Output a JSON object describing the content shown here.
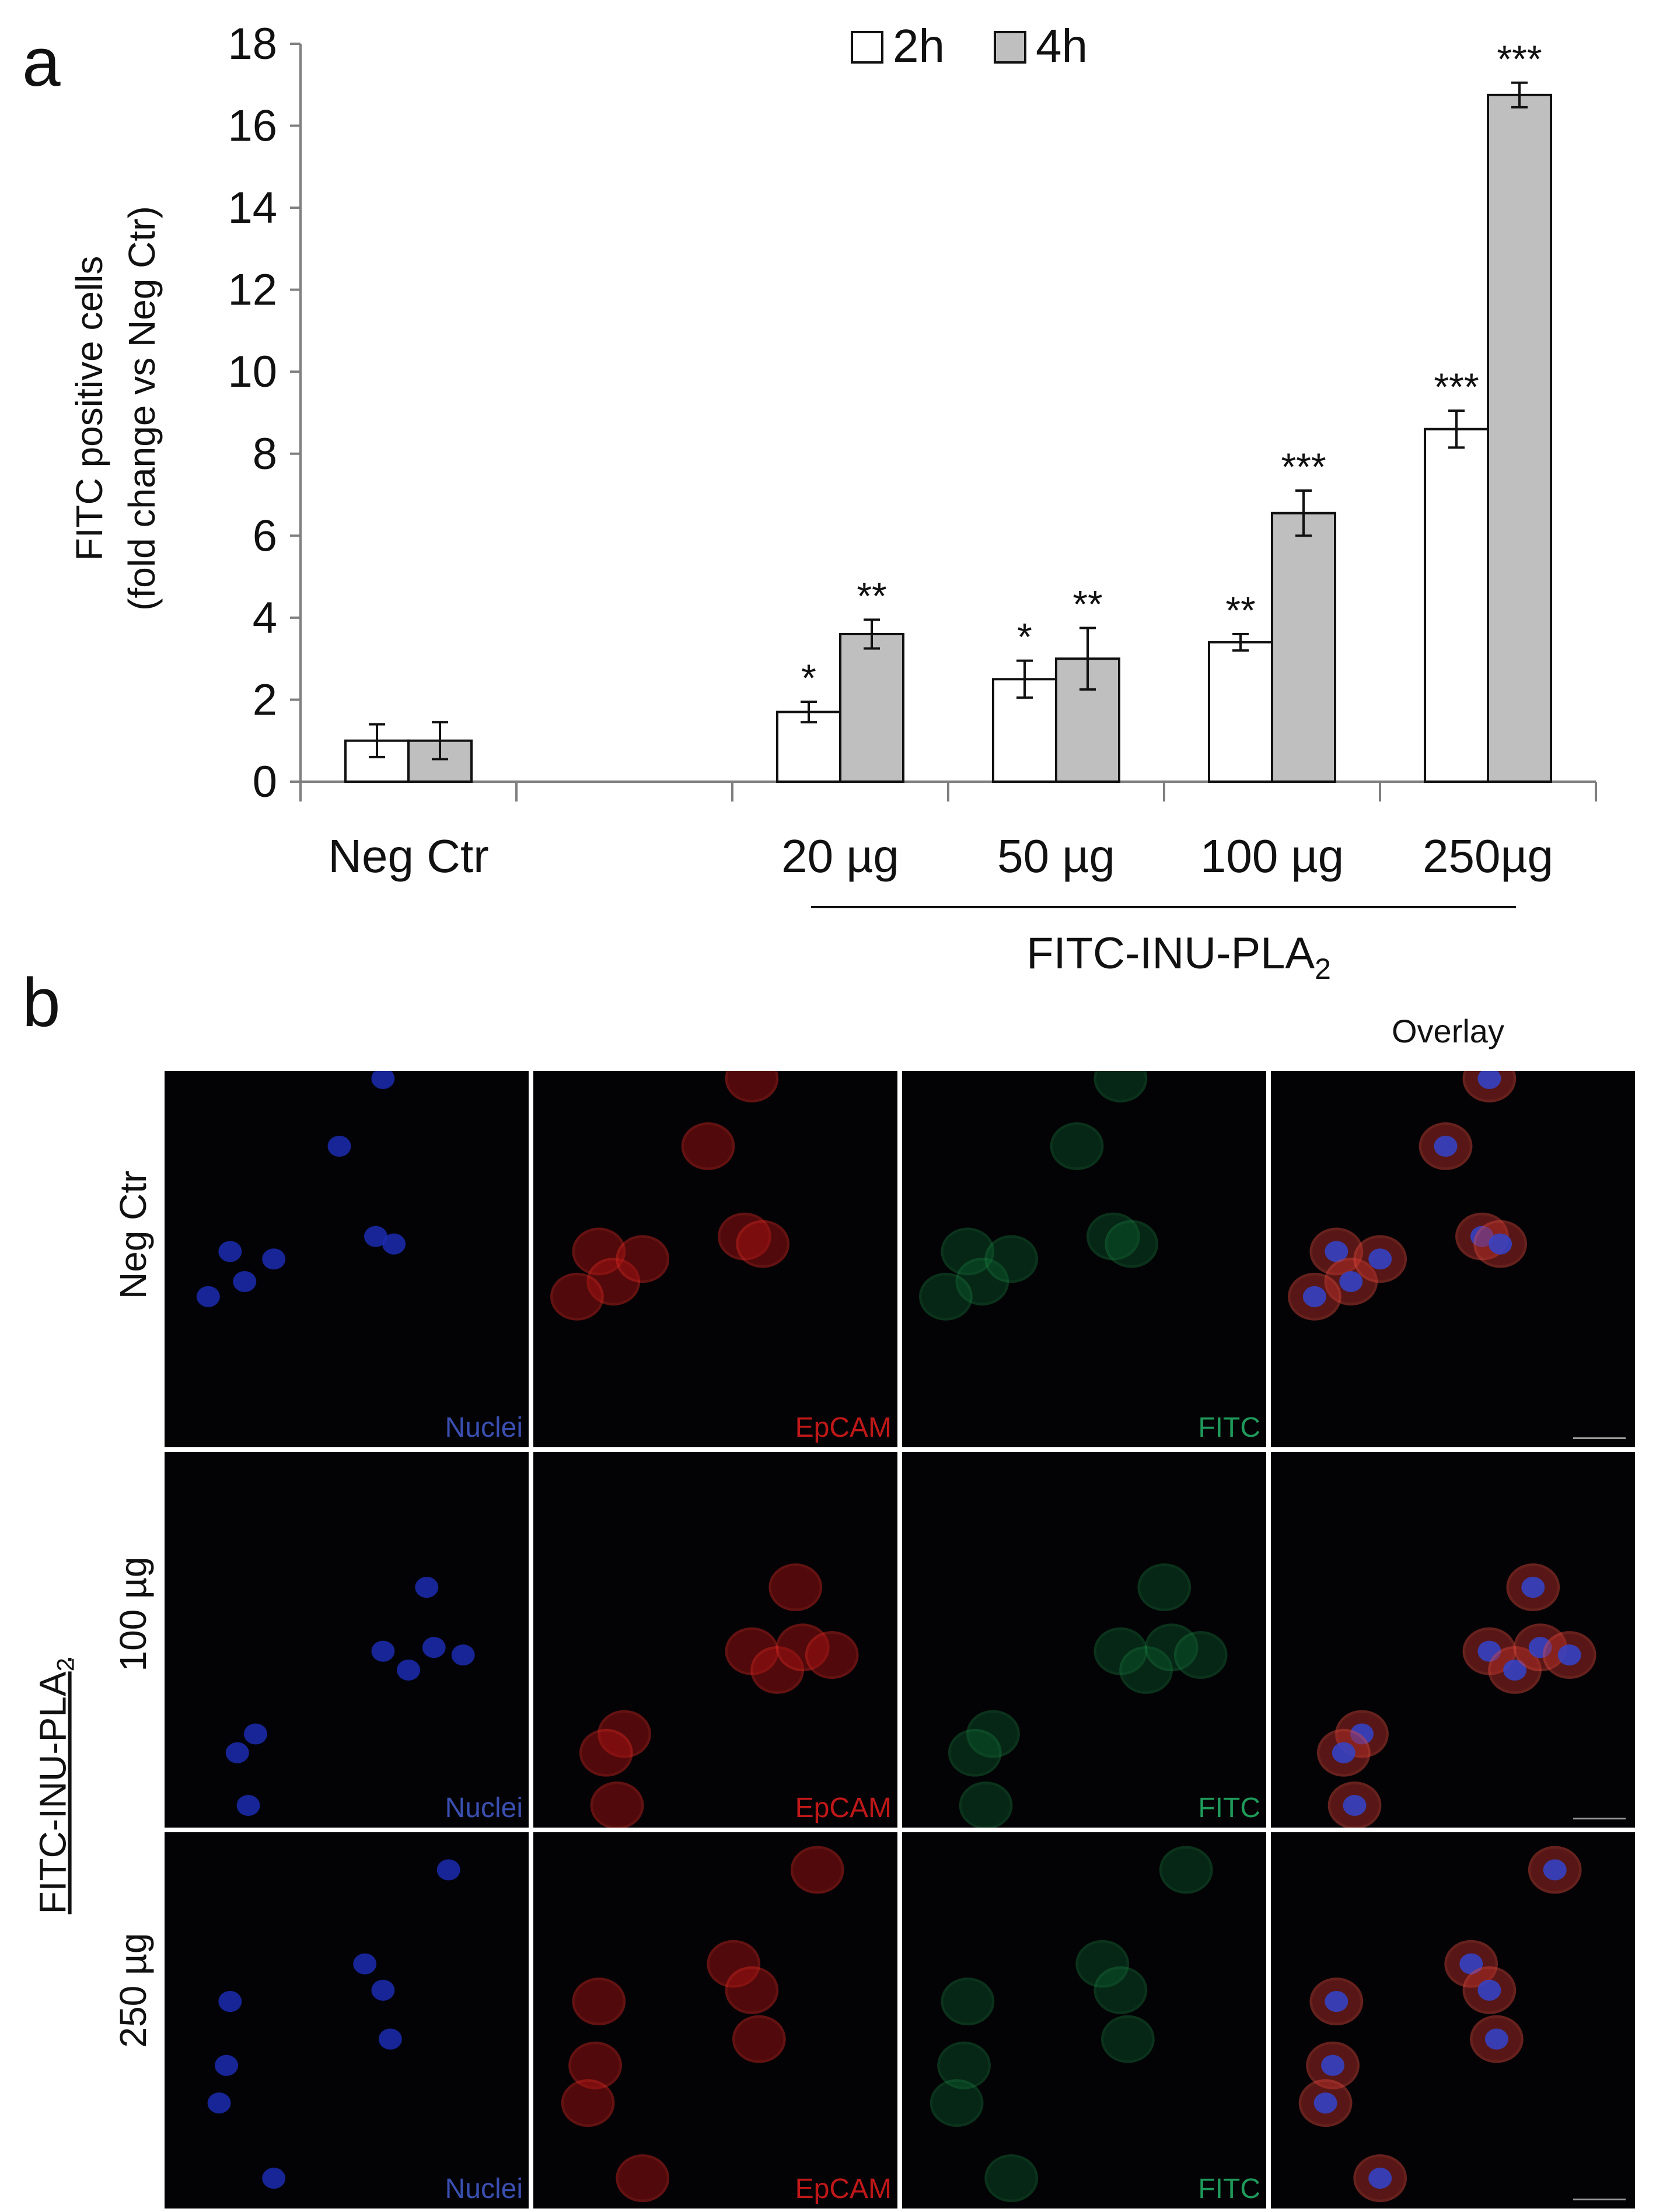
{
  "panel_a": {
    "letter": "a"
  },
  "panel_b": {
    "letter": "b"
  },
  "chart_data": {
    "type": "bar",
    "categories": [
      "Neg Ctr",
      "",
      "20 µg",
      "50 µg",
      "100 µg",
      "250µg"
    ],
    "series": [
      {
        "name": "2h",
        "color": "#ffffff",
        "values": [
          1.0,
          null,
          1.7,
          2.5,
          3.4,
          8.6
        ],
        "errors": [
          0.4,
          null,
          0.25,
          0.45,
          0.2,
          0.45
        ]
      },
      {
        "name": "4h",
        "color": "#bfbfbf",
        "values": [
          1.0,
          null,
          3.6,
          3.0,
          6.55,
          16.75
        ],
        "errors": [
          0.45,
          null,
          0.35,
          0.75,
          0.55,
          0.3
        ]
      }
    ],
    "significance": {
      "2h": [
        "",
        "",
        "*",
        "*",
        "**",
        "***"
      ],
      "4h": [
        "",
        "",
        "**",
        "**",
        "***",
        "***"
      ]
    },
    "ylabel_line1": "FITC positive cells",
    "ylabel_line2": "(fold change vs Neg Ctr)",
    "xlabel": "",
    "ylim": [
      0,
      18
    ],
    "yticks": [
      "0",
      "2",
      "4",
      "6",
      "8",
      "10",
      "12",
      "14",
      "16",
      "18"
    ],
    "legend_position": "top",
    "group_label": {
      "text": "FITC-INU-PLA",
      "subscript": "2"
    }
  },
  "micrographs": {
    "column_headers": [
      "",
      "",
      "",
      "Overlay"
    ],
    "channel_labels": [
      {
        "text": "Nuclei",
        "color": "#3a4fb0"
      },
      {
        "text": "EpCAM",
        "color": "#c01818"
      },
      {
        "text": "FITC",
        "color": "#1f9a5a"
      },
      {
        "text": "",
        "color": "#ffffff"
      }
    ],
    "rows": [
      {
        "label": "Neg Ctr"
      },
      {
        "label": "100 µg"
      },
      {
        "label": "250 µg"
      }
    ],
    "group_label": {
      "text": "FITC-INU-PLA",
      "subscript": "2"
    }
  }
}
